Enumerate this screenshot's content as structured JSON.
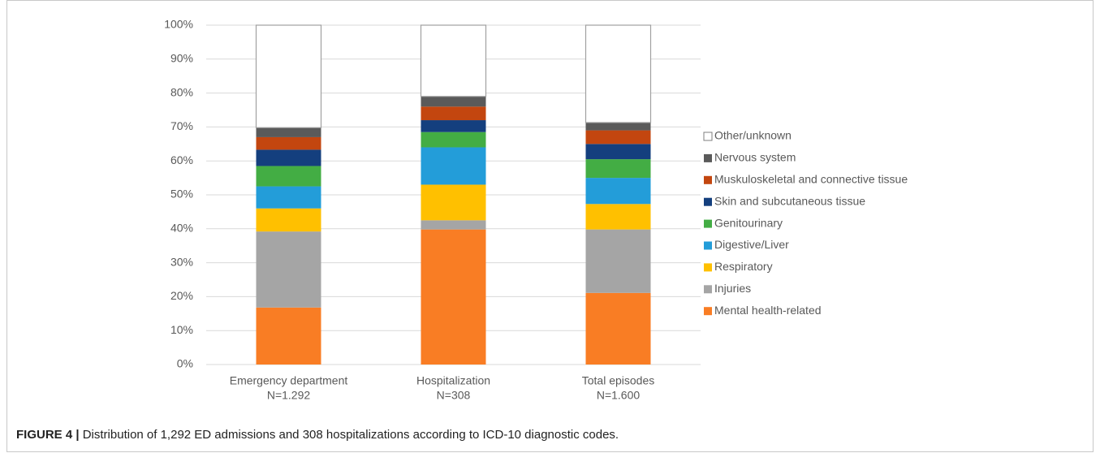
{
  "chart_data": {
    "type": "stacked_bar",
    "categories": [
      [
        "Emergency department",
        "N=1.292"
      ],
      [
        "Hospitalization",
        "N=308"
      ],
      [
        "Total episodes",
        "N=1.600"
      ]
    ],
    "series": [
      {
        "name": "Mental health-related",
        "color": "#f97d24",
        "values": [
          16.8,
          39.8,
          21.1
        ]
      },
      {
        "name": "Injuries",
        "color": "#a5a5a5",
        "values": [
          22.4,
          2.7,
          18.7
        ]
      },
      {
        "name": "Respiratory",
        "color": "#ffc000",
        "values": [
          6.8,
          10.5,
          7.5
        ]
      },
      {
        "name": "Digestive/Liver",
        "color": "#239dd9",
        "values": [
          6.5,
          11.0,
          7.7
        ]
      },
      {
        "name": "Genitourinary",
        "color": "#43ad44",
        "values": [
          6.0,
          4.5,
          5.5
        ]
      },
      {
        "name": "Skin and subcutaneous tissue",
        "color": "#143f7e",
        "values": [
          4.8,
          3.5,
          4.5
        ]
      },
      {
        "name": "Muskuloskeletal and connective tissue",
        "color": "#c3460f",
        "values": [
          3.7,
          4.0,
          4.0
        ]
      },
      {
        "name": "Nervous system",
        "color": "#5a5a5a",
        "values": [
          2.8,
          3.0,
          2.3
        ]
      },
      {
        "name": "Other/unknown",
        "color": "#ffffff",
        "edgecolor": "#a0a0a0",
        "values": [
          30.2,
          21.0,
          28.7
        ]
      }
    ],
    "ylim": [
      0,
      100
    ],
    "yticks": [
      {
        "value": 0,
        "label": "0%"
      },
      {
        "value": 10,
        "label": "10%"
      },
      {
        "value": 20,
        "label": "20%"
      },
      {
        "value": 30,
        "label": "30%"
      },
      {
        "value": 40,
        "label": "40%"
      },
      {
        "value": 50,
        "label": "50%"
      },
      {
        "value": 60,
        "label": "60%"
      },
      {
        "value": 70,
        "label": "70%"
      },
      {
        "value": 80,
        "label": "80%"
      },
      {
        "value": 90,
        "label": "90%"
      },
      {
        "value": 100,
        "label": "100%"
      }
    ],
    "grid": true,
    "legend": "right",
    "caption_label": "FIGURE 4 |",
    "caption": "Distribution of 1,292 ED admissions and 308 hospitalizations according to ICD-10 diagnostic codes."
  }
}
